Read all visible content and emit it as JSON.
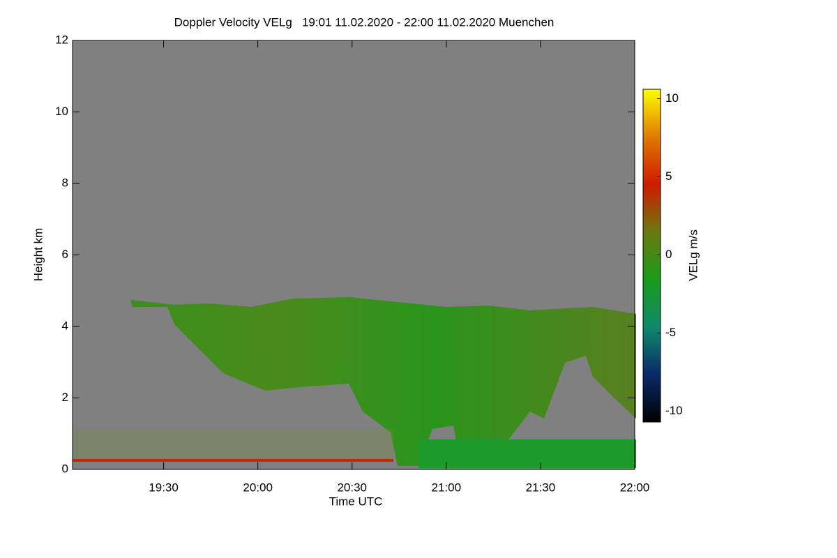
{
  "chart_data": {
    "type": "heatmap",
    "title": "Doppler Velocity VELg   19:01 11.02.2020 - 22:00 11.02.2020 Muenchen",
    "x_label": "Time UTC",
    "y_label": "Height km",
    "xlim": [
      19.01667,
      22.0
    ],
    "xticks": [
      {
        "value": 19.5,
        "label": "19:30"
      },
      {
        "value": 20.0,
        "label": "20:00"
      },
      {
        "value": 20.5,
        "label": "20:30"
      },
      {
        "value": 21.0,
        "label": "21:00"
      },
      {
        "value": 21.5,
        "label": "21:30"
      },
      {
        "value": 22.0,
        "label": "22:00"
      }
    ],
    "ylim": [
      0,
      12
    ],
    "yticks": [
      0,
      2,
      4,
      6,
      8,
      10,
      12
    ],
    "colorbar": {
      "label": "VELg m/s",
      "lim": [
        -10.7,
        10.6
      ],
      "ticks": [
        -10,
        -5,
        0,
        5,
        10
      ],
      "colors": [
        "#000000",
        "#0a2a6a",
        "#0f8a6a",
        "#1a9a1a",
        "#6a7a10",
        "#d01a00",
        "#e07a00",
        "#ffff00"
      ]
    },
    "background_color": "#808080"
  }
}
